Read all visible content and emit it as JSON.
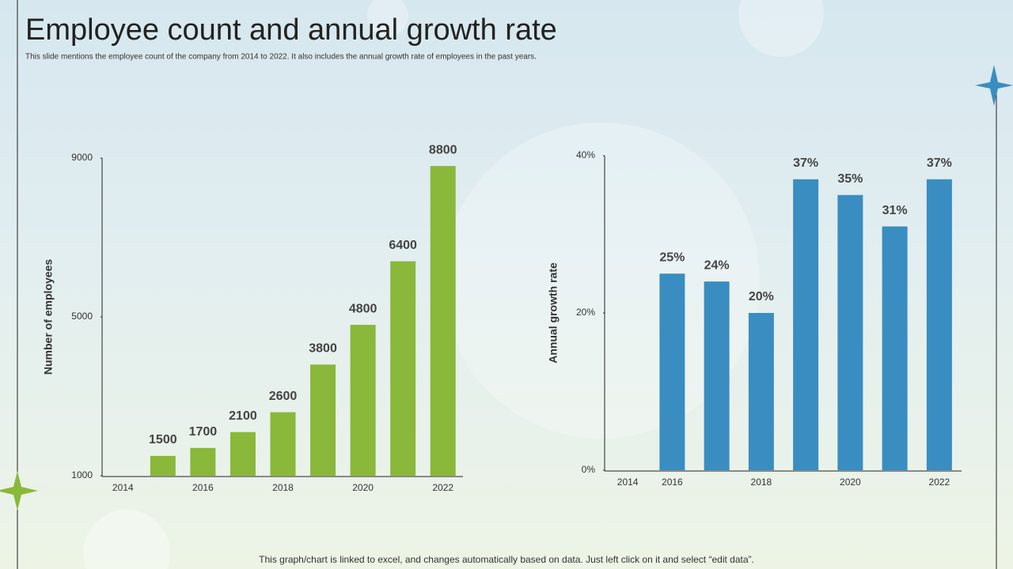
{
  "header": {
    "title": "Employee count and annual growth rate",
    "subtitle": "This slide mentions the employee count of the company from 2014 to 2022. It also includes the annual growth rate of employees in the past years."
  },
  "footer": "This graph/chart is linked to excel, and changes automatically based on data. Just left click on it and select “edit data”.",
  "chart_data": [
    {
      "type": "bar",
      "y_label": "Number of employees",
      "categories": [
        "2014",
        null,
        "2016",
        null,
        "2018",
        null,
        "2020",
        null,
        "2022"
      ],
      "values": [
        null,
        1500,
        1700,
        2100,
        2600,
        3800,
        4800,
        6400,
        8800
      ],
      "color": "#8ab83a",
      "ylim": [
        1000,
        9000
      ],
      "yticks": [
        1000,
        5000,
        9000
      ]
    },
    {
      "type": "bar",
      "y_label": "Annual growth rate",
      "categories": [
        "2014",
        "2016",
        null,
        "2018",
        null,
        "2020",
        null,
        "2022"
      ],
      "values": [
        null,
        25,
        24,
        20,
        37,
        35,
        31,
        37
      ],
      "value_labels": [
        null,
        "25%",
        "24%",
        "20%",
        "37%",
        "35%",
        "31%",
        "37%"
      ],
      "color": "#3a8dc0",
      "ylim": [
        0,
        40
      ],
      "yticks": [
        {
          "value": 0,
          "label": "0%"
        },
        {
          "value": 20,
          "label": "20%"
        },
        {
          "value": 40,
          "label": "40%"
        }
      ]
    }
  ]
}
